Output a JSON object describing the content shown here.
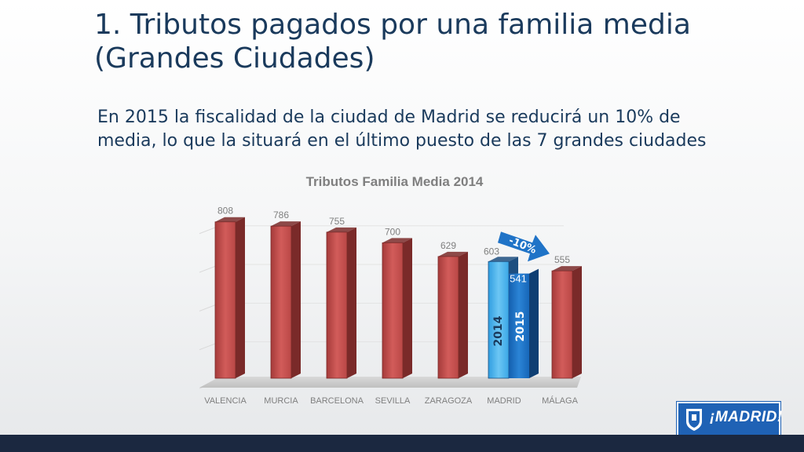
{
  "slide": {
    "title_line1": "1. Tributos pagados por una familia media",
    "title_line2": "(Grandes Ciudades)",
    "subtitle": "En 2015 la fiscalidad de la ciudad de Madrid se reducirá un 10% de media, lo que la situará en el último puesto de las 7 grandes ciudades"
  },
  "logo": {
    "text": "¡MADRID!"
  },
  "chart_data": {
    "type": "bar",
    "title": "Tributos Familia Media 2014",
    "categories": [
      "VALENCIA",
      "MURCIA",
      "BARCELONA",
      "SEVILLA",
      "ZARAGOZA",
      "MADRID",
      "MÁLAGA"
    ],
    "values": [
      808,
      786,
      755,
      700,
      629,
      603,
      555
    ],
    "madrid_2015": {
      "label": "2015",
      "value": 541
    },
    "madrid_2014_label": "2014",
    "arrow_label": "-10%",
    "ylim": [
      0,
      900
    ],
    "grid": true,
    "colors": {
      "bar": "#c9504f",
      "bar_side": "#7e2a29",
      "madrid_2014": "#4fb3ea",
      "madrid_2015": "#1a73c9",
      "arrow": "#1f73c7"
    }
  }
}
